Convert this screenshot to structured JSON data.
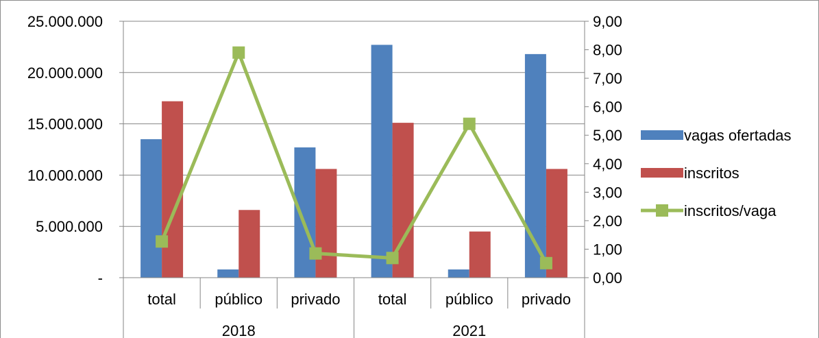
{
  "chart_data": {
    "type": "bar",
    "groups": [
      {
        "label": "2018",
        "categories": [
          "total",
          "público",
          "privado"
        ]
      },
      {
        "label": "2021",
        "categories": [
          "total",
          "público",
          "privado"
        ]
      }
    ],
    "series": [
      {
        "name": "vagas ofertadas",
        "type": "bar",
        "axis": "left",
        "color": "#4f81bd",
        "values": [
          13500000,
          800000,
          12700000,
          22700000,
          800000,
          21800000
        ]
      },
      {
        "name": "inscritos",
        "type": "bar",
        "axis": "left",
        "color": "#c0504d",
        "values": [
          17200000,
          6600000,
          10600000,
          15100000,
          4500000,
          10600000
        ]
      },
      {
        "name": "inscritos/vaga",
        "type": "line",
        "axis": "right",
        "color": "#9bbb59",
        "marker": "square",
        "values": [
          1.27,
          7.9,
          0.85,
          0.69,
          5.4,
          0.51
        ]
      }
    ],
    "y_left": {
      "min": 0,
      "max": 25000000,
      "tick_labels": [
        "-",
        "5.000.000",
        "10.000.000",
        "15.000.000",
        "20.000.000",
        "25.000.000"
      ]
    },
    "y_right": {
      "min": 0,
      "max": 9,
      "tick_labels": [
        "0,00",
        "1,00",
        "2,00",
        "3,00",
        "4,00",
        "5,00",
        "6,00",
        "7,00",
        "8,00",
        "9,00"
      ]
    },
    "grid": true,
    "legend_position": "right"
  }
}
